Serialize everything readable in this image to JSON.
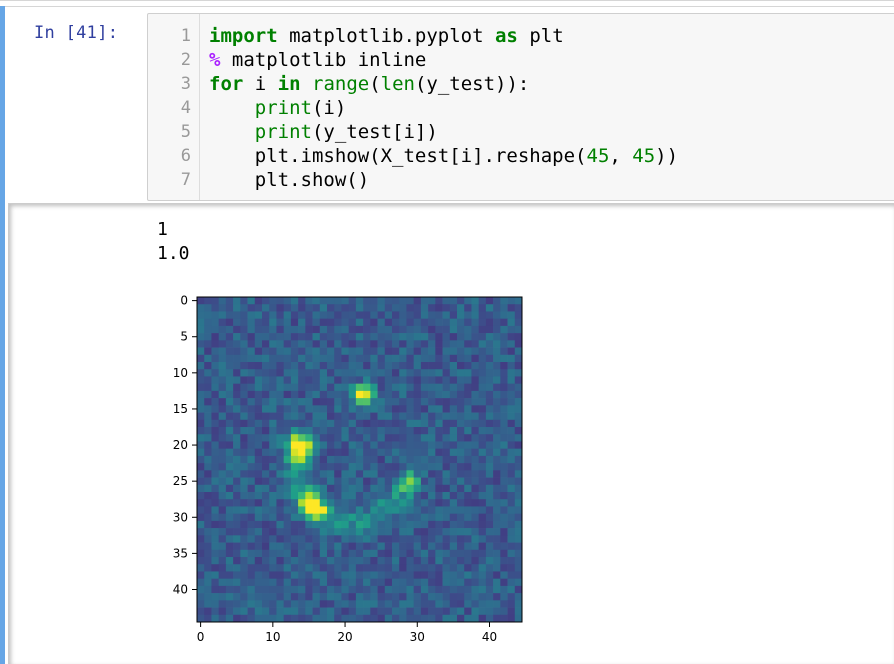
{
  "cell": {
    "prompt": "In [41]:",
    "code_lines": [
      {
        "n": "1",
        "tokens": [
          [
            "kw",
            "import"
          ],
          [
            "t",
            " matplotlib.pyplot "
          ],
          [
            "kw",
            "as"
          ],
          [
            "t",
            " plt"
          ]
        ]
      },
      {
        "n": "2",
        "tokens": [
          [
            "mg",
            "%"
          ],
          [
            "t",
            " matplotlib inline"
          ]
        ]
      },
      {
        "n": "3",
        "tokens": [
          [
            "kw",
            "for"
          ],
          [
            "t",
            " i "
          ],
          [
            "kw",
            "in"
          ],
          [
            "t",
            " "
          ],
          [
            "bi",
            "range"
          ],
          [
            "t",
            "("
          ],
          [
            "bi",
            "len"
          ],
          [
            "t",
            "(y_test)):"
          ]
        ]
      },
      {
        "n": "4",
        "tokens": [
          [
            "t",
            "    "
          ],
          [
            "bi",
            "print"
          ],
          [
            "t",
            "(i)"
          ]
        ]
      },
      {
        "n": "5",
        "tokens": [
          [
            "t",
            "    "
          ],
          [
            "bi",
            "print"
          ],
          [
            "t",
            "(y_test[i])"
          ]
        ]
      },
      {
        "n": "6",
        "tokens": [
          [
            "t",
            "    plt.imshow(X_test[i].reshape("
          ],
          [
            "num",
            "45"
          ],
          [
            "t",
            ", "
          ],
          [
            "num",
            "45"
          ],
          [
            "t",
            "))"
          ]
        ]
      },
      {
        "n": "7",
        "tokens": [
          [
            "t",
            "    plt.show()"
          ]
        ]
      }
    ]
  },
  "output": {
    "lines": [
      "1",
      "1.0"
    ]
  },
  "colors": {
    "prompt": "#303f9f",
    "keyword": "#008000",
    "magic": "#aa22ff",
    "cell_selected_bar": "#66a6e6"
  },
  "chart_data": {
    "type": "heatmap",
    "colormap": "viridis",
    "grid_size": [
      45,
      45
    ],
    "xticks": [
      0,
      10,
      20,
      30,
      40
    ],
    "yticks": [
      0,
      5,
      10,
      15,
      20,
      25,
      30,
      35,
      40
    ],
    "xlim": [
      -0.5,
      44.5
    ],
    "ylim": [
      44.5,
      -0.5
    ],
    "title": "",
    "xlabel": "",
    "ylabel": "",
    "hotspots": [
      {
        "x": 16,
        "y": 29,
        "value": 1.0
      },
      {
        "x": 15,
        "y": 28,
        "value": 0.95
      },
      {
        "x": 14,
        "y": 20,
        "value": 0.85
      },
      {
        "x": 14,
        "y": 21,
        "value": 0.8
      },
      {
        "x": 22,
        "y": 13,
        "value": 0.6
      },
      {
        "x": 23,
        "y": 13,
        "value": 0.6
      },
      {
        "x": 29,
        "y": 25,
        "value": 0.55
      }
    ]
  }
}
